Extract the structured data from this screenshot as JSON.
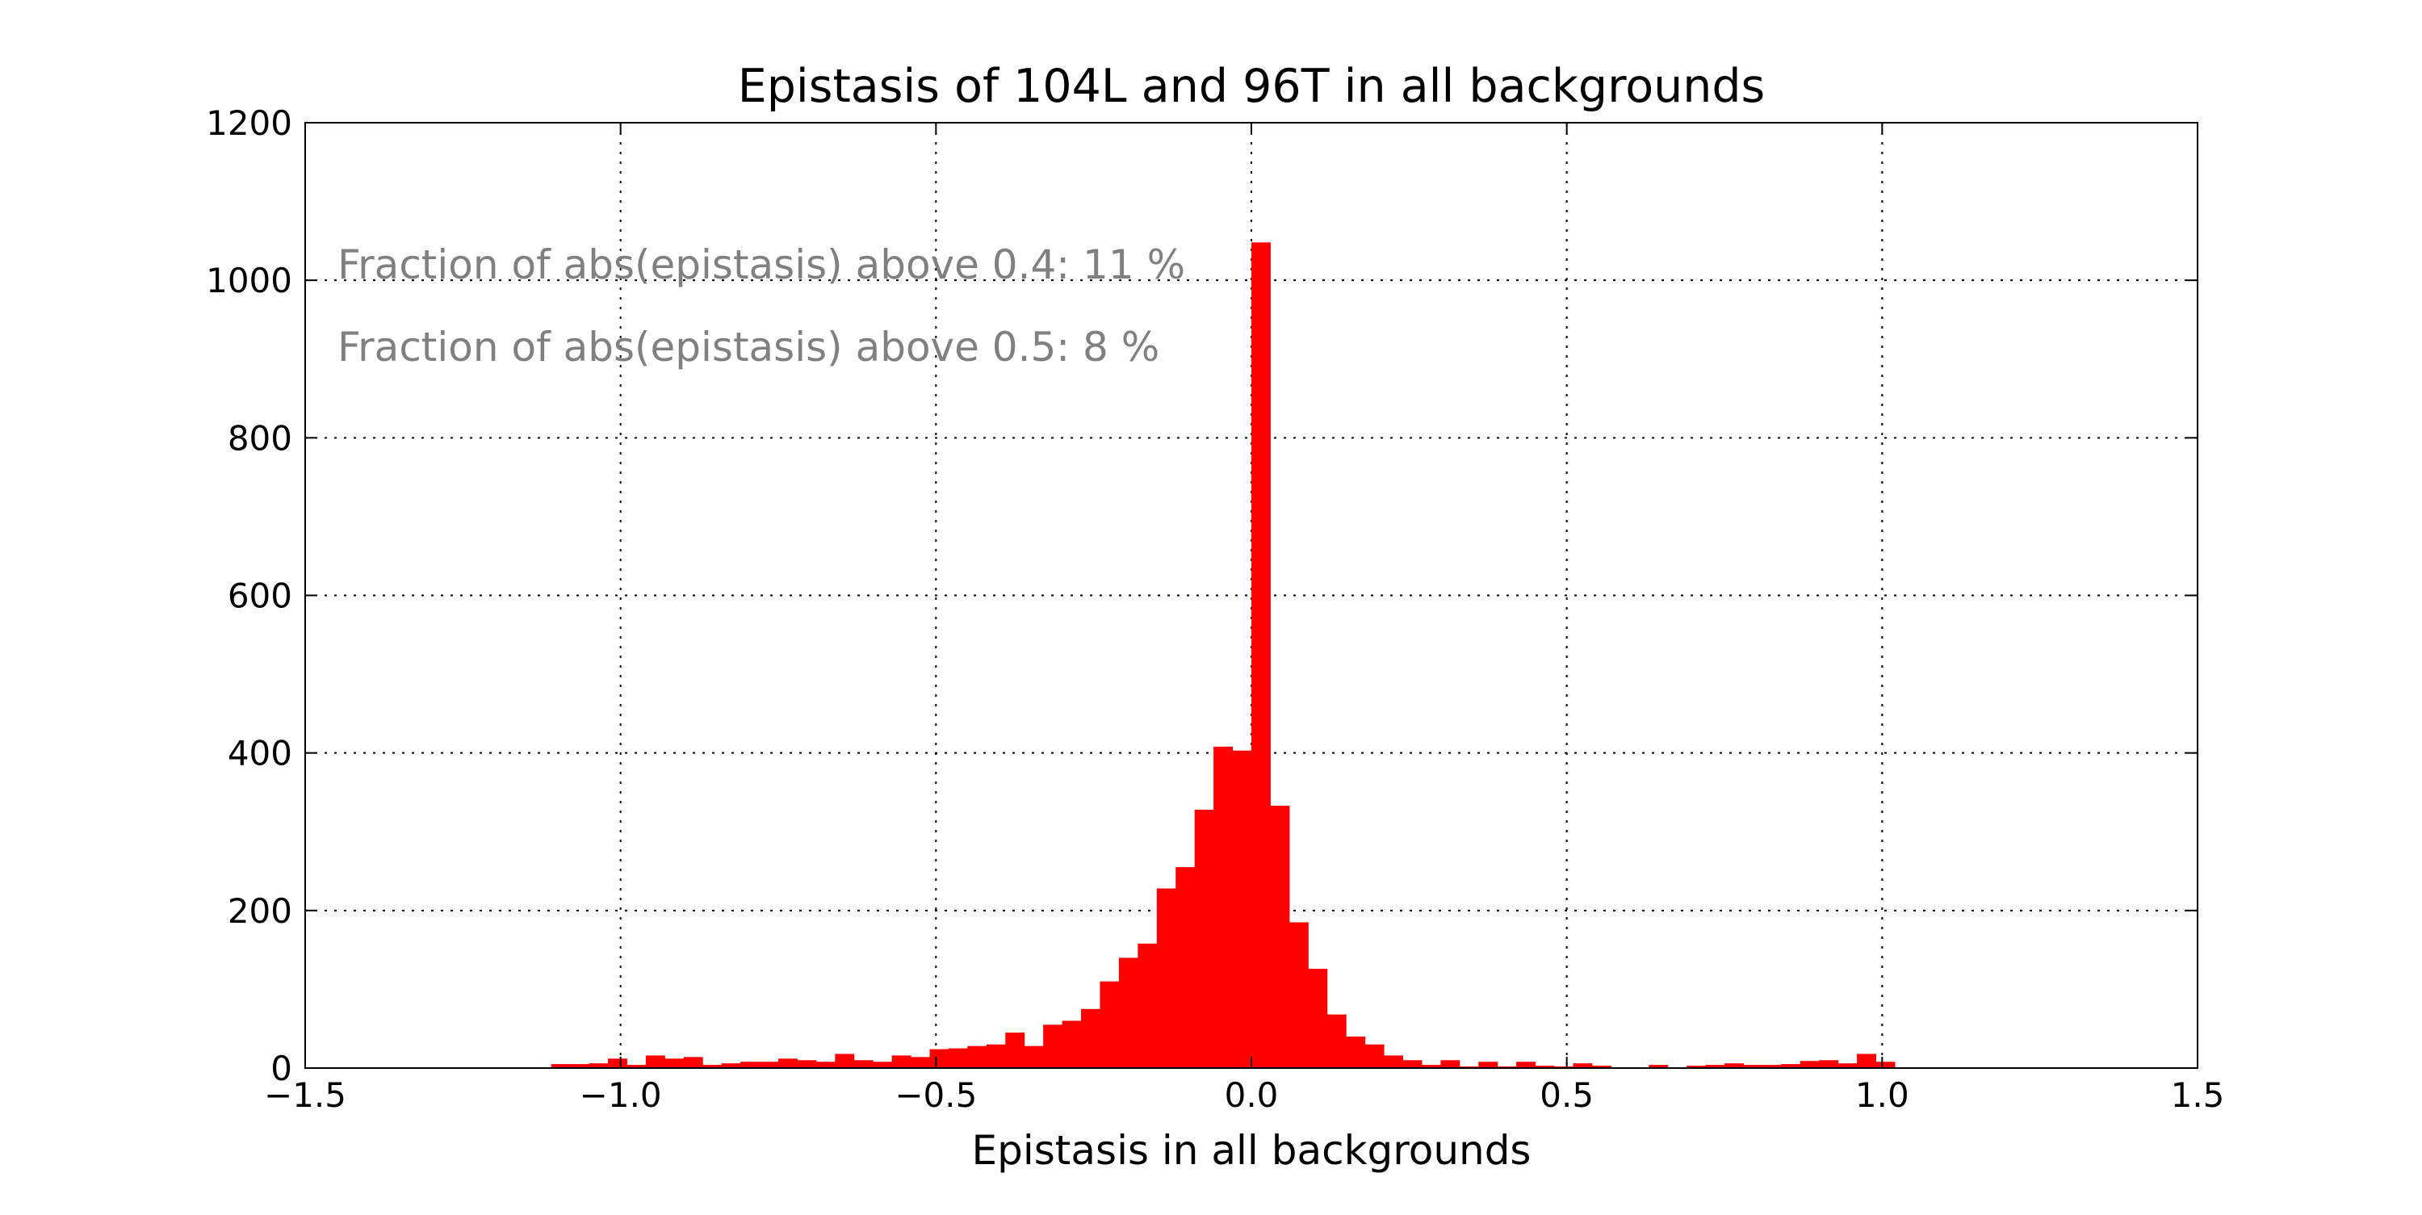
{
  "chart_data": {
    "type": "bar",
    "title": "Epistasis of 104L and 96T in all backgrounds",
    "xlabel": "Epistasis in all backgrounds",
    "ylabel": "",
    "xlim": [
      -1.5,
      1.5
    ],
    "ylim": [
      0,
      1200
    ],
    "bin_width": 0.03,
    "bar_color": "#ff0000",
    "grid": true,
    "grid_style": "dotted",
    "legend": "none",
    "xticks": [
      -1.5,
      -1.0,
      -0.5,
      0.0,
      0.5,
      1.0,
      1.5
    ],
    "xtick_labels": [
      "−1.5",
      "−1.0",
      "−0.5",
      "0.0",
      "0.5",
      "1.0",
      "1.5"
    ],
    "yticks": [
      0,
      200,
      400,
      600,
      800,
      1000,
      1200
    ],
    "ytick_labels": [
      "0",
      "200",
      "400",
      "600",
      "800",
      "1000",
      "1200"
    ],
    "annotations": [
      "Fraction of abs(epistasis) above 0.4: 11 %",
      "Fraction of abs(epistasis) above 0.5: 8 %"
    ],
    "bins": [
      {
        "x": -1.11,
        "y": 5
      },
      {
        "x": -1.08,
        "y": 5
      },
      {
        "x": -1.05,
        "y": 6
      },
      {
        "x": -1.02,
        "y": 12
      },
      {
        "x": -0.99,
        "y": 4
      },
      {
        "x": -0.96,
        "y": 16
      },
      {
        "x": -0.93,
        "y": 12
      },
      {
        "x": -0.9,
        "y": 14
      },
      {
        "x": -0.87,
        "y": 4
      },
      {
        "x": -0.84,
        "y": 6
      },
      {
        "x": -0.81,
        "y": 8
      },
      {
        "x": -0.78,
        "y": 8
      },
      {
        "x": -0.75,
        "y": 12
      },
      {
        "x": -0.72,
        "y": 10
      },
      {
        "x": -0.69,
        "y": 8
      },
      {
        "x": -0.66,
        "y": 18
      },
      {
        "x": -0.63,
        "y": 10
      },
      {
        "x": -0.6,
        "y": 8
      },
      {
        "x": -0.57,
        "y": 16
      },
      {
        "x": -0.54,
        "y": 14
      },
      {
        "x": -0.51,
        "y": 24
      },
      {
        "x": -0.48,
        "y": 25
      },
      {
        "x": -0.45,
        "y": 28
      },
      {
        "x": -0.42,
        "y": 30
      },
      {
        "x": -0.39,
        "y": 45
      },
      {
        "x": -0.36,
        "y": 28
      },
      {
        "x": -0.33,
        "y": 55
      },
      {
        "x": -0.3,
        "y": 60
      },
      {
        "x": -0.27,
        "y": 75
      },
      {
        "x": -0.24,
        "y": 110
      },
      {
        "x": -0.21,
        "y": 140
      },
      {
        "x": -0.18,
        "y": 158
      },
      {
        "x": -0.15,
        "y": 228
      },
      {
        "x": -0.12,
        "y": 255
      },
      {
        "x": -0.09,
        "y": 328
      },
      {
        "x": -0.06,
        "y": 408
      },
      {
        "x": -0.03,
        "y": 403
      },
      {
        "x": 0.0,
        "y": 1048
      },
      {
        "x": 0.03,
        "y": 333
      },
      {
        "x": 0.06,
        "y": 185
      },
      {
        "x": 0.09,
        "y": 126
      },
      {
        "x": 0.12,
        "y": 68
      },
      {
        "x": 0.15,
        "y": 40
      },
      {
        "x": 0.18,
        "y": 30
      },
      {
        "x": 0.21,
        "y": 16
      },
      {
        "x": 0.24,
        "y": 10
      },
      {
        "x": 0.27,
        "y": 4
      },
      {
        "x": 0.3,
        "y": 10
      },
      {
        "x": 0.33,
        "y": 2
      },
      {
        "x": 0.36,
        "y": 8
      },
      {
        "x": 0.39,
        "y": 2
      },
      {
        "x": 0.42,
        "y": 8
      },
      {
        "x": 0.45,
        "y": 3
      },
      {
        "x": 0.48,
        "y": 2
      },
      {
        "x": 0.51,
        "y": 6
      },
      {
        "x": 0.54,
        "y": 3
      },
      {
        "x": 0.57,
        "y": 1
      },
      {
        "x": 0.6,
        "y": 1
      },
      {
        "x": 0.63,
        "y": 4
      },
      {
        "x": 0.66,
        "y": 1
      },
      {
        "x": 0.69,
        "y": 3
      },
      {
        "x": 0.72,
        "y": 4
      },
      {
        "x": 0.75,
        "y": 6
      },
      {
        "x": 0.78,
        "y": 4
      },
      {
        "x": 0.81,
        "y": 4
      },
      {
        "x": 0.84,
        "y": 5
      },
      {
        "x": 0.87,
        "y": 9
      },
      {
        "x": 0.9,
        "y": 10
      },
      {
        "x": 0.93,
        "y": 6
      },
      {
        "x": 0.96,
        "y": 18
      },
      {
        "x": 0.99,
        "y": 8
      }
    ]
  }
}
